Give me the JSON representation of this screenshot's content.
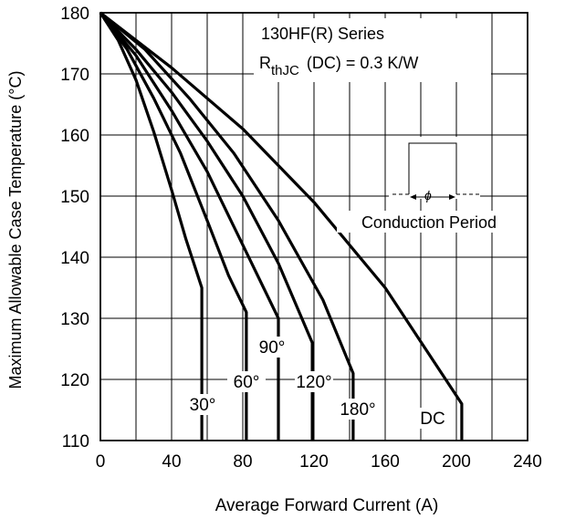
{
  "chart_data": {
    "type": "line",
    "title": "",
    "xlabel": "Average Forward Current (A)",
    "ylabel": "Maximum Allowable Case Temperature (°C)",
    "xlim": [
      0,
      240
    ],
    "ylim": [
      110,
      180
    ],
    "x_ticks": [
      0,
      40,
      80,
      120,
      160,
      200,
      240
    ],
    "y_ticks": [
      110,
      120,
      130,
      140,
      150,
      160,
      170,
      180
    ],
    "grid": true,
    "annotation": {
      "series_line": "130HF(R) Series",
      "rth_main": "R",
      "rth_sub": "thJC",
      "rth_rest": "(DC) = 0.3 K/W",
      "conduction_label": "Conduction Period"
    },
    "series": [
      {
        "name": "30°",
        "points": [
          [
            0,
            180
          ],
          [
            10,
            175.5
          ],
          [
            20,
            169
          ],
          [
            30,
            160.5
          ],
          [
            40,
            151
          ],
          [
            48,
            143
          ],
          [
            57,
            135
          ],
          [
            57,
            110
          ]
        ]
      },
      {
        "name": "60°",
        "points": [
          [
            0,
            180
          ],
          [
            15,
            174
          ],
          [
            30,
            166
          ],
          [
            45,
            157
          ],
          [
            60,
            146
          ],
          [
            72,
            137
          ],
          [
            82,
            131
          ],
          [
            82,
            110
          ]
        ]
      },
      {
        "name": "90°",
        "points": [
          [
            0,
            180
          ],
          [
            20,
            173
          ],
          [
            40,
            164
          ],
          [
            60,
            154
          ],
          [
            80,
            142
          ],
          [
            100,
            130
          ],
          [
            100,
            110
          ]
        ]
      },
      {
        "name": "120°",
        "points": [
          [
            0,
            180
          ],
          [
            20,
            174
          ],
          [
            40,
            167
          ],
          [
            60,
            159
          ],
          [
            80,
            150
          ],
          [
            100,
            139
          ],
          [
            119,
            126
          ],
          [
            119,
            110
          ]
        ]
      },
      {
        "name": "180°",
        "points": [
          [
            0,
            180
          ],
          [
            25,
            174
          ],
          [
            50,
            166
          ],
          [
            75,
            157
          ],
          [
            100,
            146
          ],
          [
            125,
            133
          ],
          [
            142,
            121
          ],
          [
            142,
            110
          ]
        ]
      },
      {
        "name": "DC",
        "points": [
          [
            0,
            180
          ],
          [
            40,
            171
          ],
          [
            80,
            161
          ],
          [
            120,
            149
          ],
          [
            160,
            135
          ],
          [
            203,
            116
          ],
          [
            203,
            110
          ]
        ]
      }
    ]
  }
}
